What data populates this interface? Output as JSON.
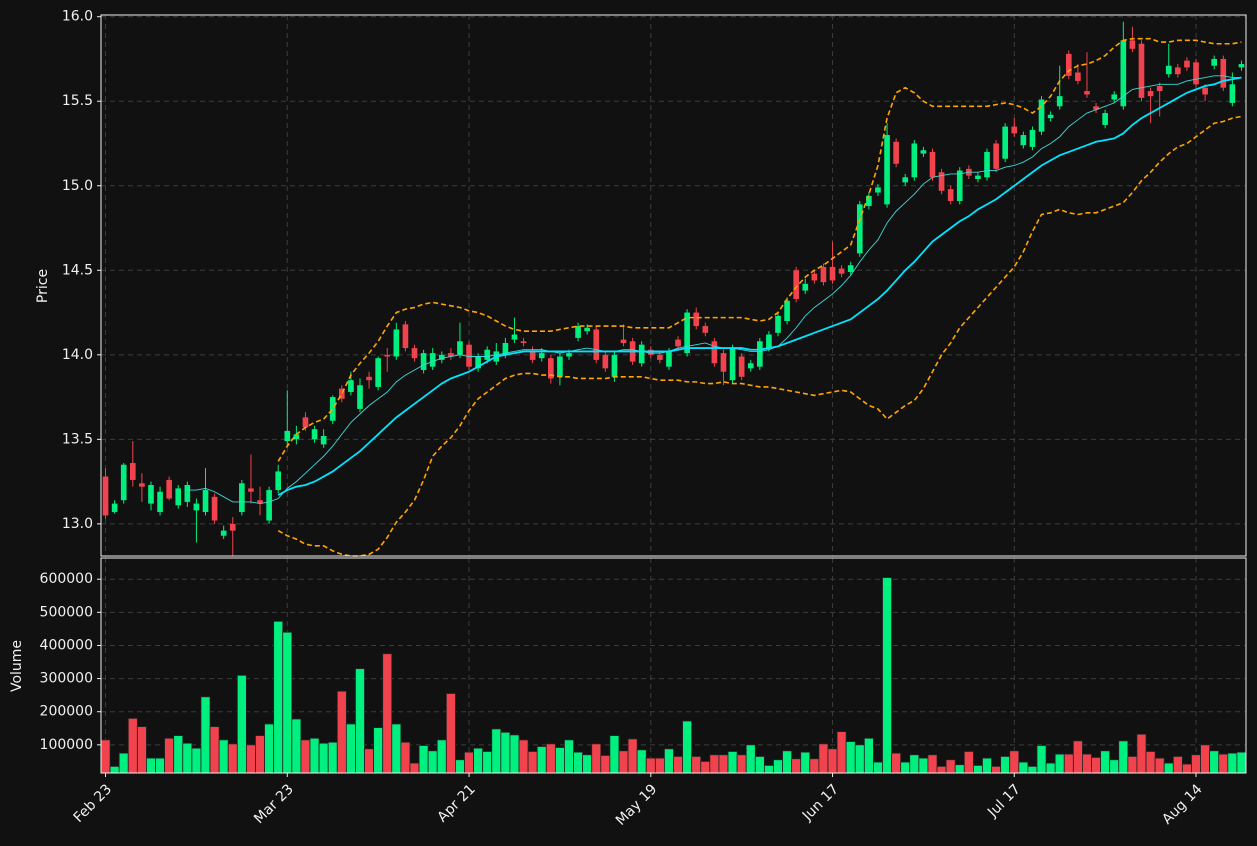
{
  "chart_data": {
    "type": "candlestick",
    "ylabel": "Price",
    "up_color": "#00f080",
    "down_color": "#f0434e",
    "grid": true,
    "categories": [
      "Feb 23",
      null,
      null,
      null,
      null,
      null,
      null,
      null,
      null,
      null,
      null,
      null,
      null,
      null,
      null,
      null,
      null,
      null,
      null,
      null,
      "Mar 23",
      null,
      null,
      null,
      null,
      null,
      null,
      null,
      null,
      null,
      null,
      null,
      null,
      null,
      null,
      null,
      null,
      null,
      null,
      null,
      "Apr 21",
      null,
      null,
      null,
      null,
      null,
      null,
      null,
      null,
      null,
      null,
      null,
      null,
      null,
      null,
      null,
      null,
      null,
      null,
      null,
      "May 19",
      null,
      null,
      null,
      null,
      null,
      null,
      null,
      null,
      null,
      null,
      null,
      null,
      null,
      null,
      null,
      null,
      null,
      null,
      null,
      "Jun 17",
      null,
      null,
      null,
      null,
      null,
      null,
      null,
      null,
      null,
      null,
      null,
      null,
      null,
      null,
      null,
      null,
      null,
      null,
      null,
      "Jul 17",
      null,
      null,
      null,
      null,
      null,
      null,
      null,
      null,
      null,
      null,
      null,
      null,
      null,
      null,
      null,
      null,
      null,
      null,
      null,
      "Aug 14",
      null,
      null,
      null,
      null,
      null
    ],
    "open": [
      13.28,
      13.07,
      13.14,
      13.36,
      13.24,
      13.12,
      13.07,
      13.26,
      13.11,
      13.13,
      13.08,
      13.07,
      13.16,
      12.93,
      13.0,
      13.07,
      13.21,
      13.14,
      13.02,
      13.2,
      13.49,
      13.5,
      13.63,
      13.5,
      13.47,
      13.61,
      13.8,
      13.78,
      13.68,
      13.87,
      13.81,
      14.0,
      13.99,
      14.18,
      14.04,
      13.91,
      13.93,
      13.97,
      14.01,
      14.0,
      14.06,
      13.92,
      13.97,
      13.96,
      14.0,
      14.09,
      14.08,
      14.02,
      13.98,
      13.98,
      13.87,
      13.99,
      14.1,
      14.14,
      14.15,
      14.0,
      13.87,
      14.09,
      14.08,
      13.95,
      14.03,
      14.0,
      13.93,
      14.09,
      14.01,
      14.25,
      14.17,
      14.08,
      14.01,
      13.85,
      13.99,
      13.92,
      13.93,
      14.04,
      14.13,
      14.2,
      14.5,
      14.38,
      14.48,
      14.52,
      14.52,
      14.51,
      14.49,
      14.6,
      14.88,
      14.96,
      14.89,
      15.26,
      15.02,
      15.05,
      15.19,
      15.2,
      15.08,
      14.98,
      14.91,
      15.1,
      15.04,
      15.05,
      15.25,
      15.16,
      15.35,
      15.24,
      15.23,
      15.32,
      15.4,
      15.47,
      15.78,
      15.67,
      15.56,
      15.47,
      15.36,
      15.51,
      15.47,
      15.86,
      15.84,
      15.56,
      15.59,
      15.66,
      15.7,
      15.74,
      15.73,
      15.58,
      15.71,
      15.75,
      15.49,
      15.7
    ],
    "high": [
      13.33,
      13.14,
      13.36,
      13.49,
      13.3,
      13.25,
      13.22,
      13.28,
      13.23,
      13.25,
      13.15,
      13.33,
      13.18,
      12.99,
      13.04,
      13.26,
      13.41,
      13.22,
      13.22,
      13.35,
      13.79,
      13.58,
      13.66,
      13.58,
      13.56,
      13.76,
      13.82,
      13.9,
      13.86,
      13.9,
      13.99,
      14.04,
      14.19,
      14.2,
      14.06,
      14.03,
      14.04,
      14.02,
      14.04,
      14.19,
      14.08,
      14.01,
      14.05,
      14.07,
      14.1,
      14.22,
      14.1,
      14.05,
      14.04,
      14.0,
      14.01,
      14.03,
      14.19,
      14.18,
      14.17,
      14.02,
      14.02,
      14.18,
      14.1,
      14.08,
      14.05,
      14.02,
      14.04,
      14.11,
      14.27,
      14.28,
      14.19,
      14.1,
      14.03,
      14.06,
      14.01,
      13.97,
      14.1,
      14.14,
      14.25,
      14.34,
      14.52,
      14.45,
      14.5,
      14.54,
      14.67,
      14.53,
      14.55,
      14.91,
      14.96,
      15.01,
      15.37,
      15.28,
      15.07,
      15.27,
      15.23,
      15.22,
      15.1,
      15.0,
      15.11,
      15.12,
      15.08,
      15.22,
      15.27,
      15.37,
      15.4,
      15.32,
      15.35,
      15.53,
      15.44,
      15.71,
      15.8,
      15.72,
      15.79,
      15.49,
      15.45,
      15.56,
      15.97,
      15.94,
      15.86,
      15.58,
      15.61,
      15.84,
      15.72,
      15.76,
      15.75,
      15.6,
      15.77,
      15.77,
      15.67,
      15.74
    ],
    "low": [
      13.03,
      13.06,
      13.12,
      13.22,
      13.13,
      13.08,
      13.05,
      13.14,
      13.09,
      13.1,
      12.89,
      13.05,
      13.0,
      12.91,
      12.81,
      13.05,
      13.12,
      13.05,
      13.0,
      13.18,
      13.46,
      13.47,
      13.55,
      13.48,
      13.45,
      13.59,
      13.72,
      13.76,
      13.66,
      13.8,
      13.79,
      13.9,
      13.97,
      14.02,
      13.96,
      13.89,
      13.91,
      13.95,
      13.97,
      13.98,
      13.91,
      13.9,
      13.95,
      13.94,
      13.98,
      14.07,
      14.05,
      13.95,
      13.96,
      13.83,
      13.82,
      13.97,
      14.08,
      14.12,
      13.95,
      13.9,
      13.84,
      14.05,
      13.94,
      13.93,
      13.98,
      13.95,
      13.91,
      14.03,
      13.99,
      14.15,
      14.11,
      13.93,
      13.82,
      13.83,
      13.85,
      13.9,
      13.91,
      14.02,
      14.11,
      14.18,
      14.31,
      14.36,
      14.42,
      14.41,
      14.42,
      14.46,
      14.47,
      14.58,
      14.86,
      14.94,
      14.87,
      15.11,
      15.0,
      15.03,
      15.17,
      15.03,
      14.95,
      14.89,
      14.89,
      15.04,
      15.02,
      15.03,
      15.08,
      15.14,
      15.29,
      15.22,
      15.21,
      15.3,
      15.38,
      15.45,
      15.63,
      15.6,
      15.52,
      15.43,
      15.34,
      15.49,
      15.45,
      15.79,
      15.5,
      15.37,
      15.41,
      15.64,
      15.64,
      15.68,
      15.58,
      15.5,
      15.69,
      15.56,
      15.47,
      15.68
    ],
    "close": [
      13.05,
      13.12,
      13.35,
      13.26,
      13.22,
      13.23,
      13.19,
      13.15,
      13.21,
      13.23,
      13.12,
      13.2,
      13.02,
      12.96,
      12.96,
      13.24,
      13.19,
      13.12,
      13.2,
      13.31,
      13.55,
      13.53,
      13.57,
      13.56,
      13.52,
      13.75,
      13.74,
      13.85,
      13.82,
      13.85,
      13.98,
      13.99,
      14.15,
      14.04,
      13.98,
      14.01,
      14.01,
      14.0,
      13.99,
      14.08,
      13.93,
      13.99,
      14.03,
      14.02,
      14.07,
      14.12,
      14.07,
      13.97,
      14.01,
      13.86,
      13.99,
      14.01,
      14.17,
      14.16,
      13.97,
      13.92,
      14.0,
      14.07,
      13.96,
      14.06,
      14.0,
      13.97,
      14.02,
      14.05,
      14.25,
      14.17,
      14.13,
      13.95,
      13.9,
      14.04,
      13.87,
      13.95,
      14.08,
      14.12,
      14.23,
      14.32,
      14.33,
      14.42,
      14.44,
      14.43,
      14.44,
      14.48,
      14.53,
      14.89,
      14.94,
      14.99,
      15.3,
      15.13,
      15.05,
      15.25,
      15.21,
      15.05,
      14.97,
      14.91,
      15.09,
      15.06,
      15.06,
      15.2,
      15.1,
      15.35,
      15.31,
      15.3,
      15.33,
      15.51,
      15.42,
      15.53,
      15.65,
      15.62,
      15.54,
      15.45,
      15.43,
      15.54,
      15.86,
      15.81,
      15.52,
      15.53,
      15.56,
      15.71,
      15.66,
      15.7,
      15.6,
      15.54,
      15.75,
      15.58,
      15.6,
      15.72
    ],
    "ylim": [
      12.81,
      16.01
    ],
    "yticks": [
      {
        "value": 13,
        "label": "13.0"
      },
      13.5,
      {
        "value": 14,
        "label": "14.0"
      },
      14.5,
      {
        "value": 15,
        "label": "15.0"
      },
      15.5,
      {
        "value": 16,
        "label": "16.0"
      }
    ],
    "lines": [
      {
        "color": "#ffa500",
        "style": "dashed",
        "values": [
          null,
          null,
          null,
          null,
          null,
          null,
          null,
          null,
          null,
          null,
          null,
          null,
          null,
          null,
          null,
          null,
          null,
          null,
          null,
          13.37,
          13.46,
          13.53,
          13.57,
          13.6,
          13.62,
          13.68,
          13.77,
          13.88,
          13.95,
          14.01,
          14.08,
          14.17,
          14.25,
          14.27,
          14.28,
          14.3,
          14.31,
          14.3,
          14.29,
          14.28,
          14.26,
          14.25,
          14.23,
          14.2,
          14.17,
          14.15,
          14.14,
          14.14,
          14.14,
          14.14,
          14.15,
          14.16,
          14.17,
          14.17,
          14.17,
          14.17,
          14.17,
          14.17,
          14.16,
          14.16,
          14.16,
          14.16,
          14.16,
          14.19,
          14.22,
          14.22,
          14.22,
          14.22,
          14.22,
          14.22,
          14.22,
          14.21,
          14.2,
          14.21,
          14.25,
          14.33,
          14.4,
          14.46,
          14.5,
          14.53,
          14.57,
          14.61,
          14.65,
          14.8,
          14.95,
          15.12,
          15.4,
          15.55,
          15.58,
          15.55,
          15.5,
          15.47,
          15.47,
          15.47,
          15.47,
          15.47,
          15.47,
          15.47,
          15.48,
          15.49,
          15.48,
          15.46,
          15.43,
          15.47,
          15.53,
          15.62,
          15.68,
          15.71,
          15.72,
          15.74,
          15.77,
          15.82,
          15.86,
          15.87,
          15.87,
          15.87,
          15.85,
          15.85,
          15.86,
          15.86,
          15.86,
          15.85,
          15.84,
          15.84,
          15.84,
          15.85
        ]
      },
      {
        "color": "#ffa500",
        "style": "dashed",
        "values": [
          null,
          null,
          null,
          null,
          null,
          null,
          null,
          null,
          null,
          null,
          null,
          null,
          null,
          null,
          null,
          null,
          null,
          null,
          null,
          12.96,
          12.93,
          12.91,
          12.88,
          12.87,
          12.87,
          12.84,
          12.82,
          12.81,
          12.81,
          12.82,
          12.85,
          12.92,
          13.01,
          13.07,
          13.14,
          13.26,
          13.4,
          13.46,
          13.51,
          13.58,
          13.67,
          13.74,
          13.78,
          13.82,
          13.86,
          13.88,
          13.89,
          13.89,
          13.88,
          13.88,
          13.87,
          13.87,
          13.86,
          13.86,
          13.86,
          13.86,
          13.87,
          13.87,
          13.87,
          13.87,
          13.86,
          13.85,
          13.85,
          13.85,
          13.84,
          13.84,
          13.83,
          13.83,
          13.84,
          13.83,
          13.83,
          13.82,
          13.81,
          13.81,
          13.8,
          13.79,
          13.78,
          13.77,
          13.76,
          13.77,
          13.78,
          13.79,
          13.78,
          13.74,
          13.7,
          13.68,
          13.62,
          13.66,
          13.7,
          13.73,
          13.8,
          13.9,
          14.0,
          14.07,
          14.16,
          14.22,
          14.28,
          14.34,
          14.4,
          14.46,
          14.52,
          14.61,
          14.73,
          14.83,
          14.84,
          14.86,
          14.84,
          14.83,
          14.84,
          14.84,
          14.86,
          14.88,
          14.9,
          14.96,
          15.03,
          15.08,
          15.14,
          15.19,
          15.23,
          15.25,
          15.29,
          15.33,
          15.37,
          15.38,
          15.4,
          15.41
        ]
      },
      {
        "color": "#3fd8d8",
        "style": "thin",
        "values": [
          null,
          null,
          null,
          null,
          null,
          null,
          null,
          null,
          null,
          13.2,
          13.2,
          13.21,
          13.19,
          13.16,
          13.13,
          13.13,
          13.13,
          13.12,
          13.13,
          13.15,
          13.21,
          13.25,
          13.3,
          13.35,
          13.4,
          13.46,
          13.53,
          13.6,
          13.65,
          13.7,
          13.74,
          13.78,
          13.84,
          13.88,
          13.91,
          13.94,
          13.96,
          13.98,
          13.99,
          14.0,
          13.99,
          13.99,
          13.99,
          14.0,
          14.01,
          14.02,
          14.03,
          14.03,
          14.03,
          14.02,
          14.01,
          14.02,
          14.03,
          14.04,
          14.03,
          14.02,
          14.02,
          14.03,
          14.03,
          14.02,
          14.01,
          14.01,
          14.02,
          14.04,
          14.05,
          14.06,
          14.07,
          14.05,
          14.04,
          14.04,
          14.03,
          14.02,
          14.02,
          14.03,
          14.05,
          14.1,
          14.16,
          14.23,
          14.28,
          14.32,
          14.36,
          14.41,
          14.47,
          14.55,
          14.62,
          14.68,
          14.78,
          14.85,
          14.9,
          14.95,
          15.01,
          15.05,
          15.06,
          15.07,
          15.07,
          15.08,
          15.08,
          15.09,
          15.09,
          15.11,
          15.12,
          15.14,
          15.17,
          15.22,
          15.25,
          15.29,
          15.35,
          15.39,
          15.43,
          15.45,
          15.47,
          15.49,
          15.53,
          15.57,
          15.58,
          15.59,
          15.6,
          15.6,
          15.6,
          15.62,
          15.63,
          15.64,
          15.65,
          15.65,
          15.64,
          15.64
        ]
      },
      {
        "color": "#00e5ff",
        "style": "thick",
        "values": [
          null,
          null,
          null,
          null,
          null,
          null,
          null,
          null,
          null,
          null,
          null,
          null,
          null,
          null,
          null,
          null,
          null,
          null,
          null,
          13.17,
          13.2,
          13.22,
          13.23,
          13.25,
          13.28,
          13.31,
          13.35,
          13.39,
          13.43,
          13.48,
          13.53,
          13.58,
          13.63,
          13.67,
          13.71,
          13.75,
          13.79,
          13.83,
          13.86,
          13.88,
          13.9,
          13.93,
          13.96,
          13.99,
          14.0,
          14.01,
          14.02,
          14.02,
          14.02,
          14.02,
          14.02,
          14.02,
          14.02,
          14.02,
          14.02,
          14.02,
          14.02,
          14.02,
          14.02,
          14.02,
          14.02,
          14.02,
          14.02,
          14.03,
          14.04,
          14.04,
          14.04,
          14.04,
          14.04,
          14.04,
          14.04,
          14.03,
          14.03,
          14.04,
          14.05,
          14.07,
          14.09,
          14.11,
          14.13,
          14.15,
          14.17,
          14.19,
          14.21,
          14.25,
          14.29,
          14.33,
          14.38,
          14.44,
          14.5,
          14.55,
          14.61,
          14.67,
          14.71,
          14.75,
          14.79,
          14.82,
          14.86,
          14.89,
          14.92,
          14.96,
          15.0,
          15.04,
          15.08,
          15.12,
          15.15,
          15.18,
          15.2,
          15.22,
          15.24,
          15.26,
          15.27,
          15.28,
          15.31,
          15.36,
          15.4,
          15.43,
          15.46,
          15.49,
          15.52,
          15.55,
          15.57,
          15.59,
          15.6,
          15.62,
          15.63,
          15.64
        ]
      }
    ],
    "volume": {
      "ylabel": "Volume",
      "ylim": [
        15000,
        664000
      ],
      "yticks": [
        100000,
        200000,
        300000,
        400000,
        500000,
        600000
      ],
      "values": [
        115000,
        35000,
        75000,
        180000,
        155000,
        60000,
        60000,
        120000,
        128000,
        105000,
        90000,
        245000,
        155000,
        115000,
        103000,
        310000,
        100000,
        128000,
        163000,
        473000,
        440000,
        178000,
        115000,
        120000,
        105000,
        108000,
        262000,
        163000,
        330000,
        88000,
        152000,
        375000,
        163000,
        108000,
        45000,
        98000,
        82000,
        115000,
        255000,
        55000,
        78000,
        90000,
        80000,
        148000,
        138000,
        130000,
        115000,
        80000,
        95000,
        103000,
        92000,
        115000,
        78000,
        70000,
        103000,
        68000,
        128000,
        82000,
        118000,
        85000,
        60000,
        60000,
        88000,
        65000,
        172000,
        65000,
        50000,
        70000,
        70000,
        80000,
        70000,
        100000,
        65000,
        38000,
        55000,
        82000,
        58000,
        78000,
        58000,
        103000,
        88000,
        140000,
        110000,
        100000,
        120000,
        48000,
        605000,
        75000,
        48000,
        70000,
        60000,
        70000,
        35000,
        55000,
        40000,
        80000,
        38000,
        60000,
        35000,
        65000,
        82000,
        48000,
        35000,
        98000,
        45000,
        72000,
        72000,
        112000,
        72000,
        62000,
        82000,
        55000,
        112000,
        65000,
        132000,
        80000,
        60000,
        45000,
        65000,
        42000,
        70000,
        100000,
        82000,
        72000,
        75000,
        78000
      ]
    }
  }
}
